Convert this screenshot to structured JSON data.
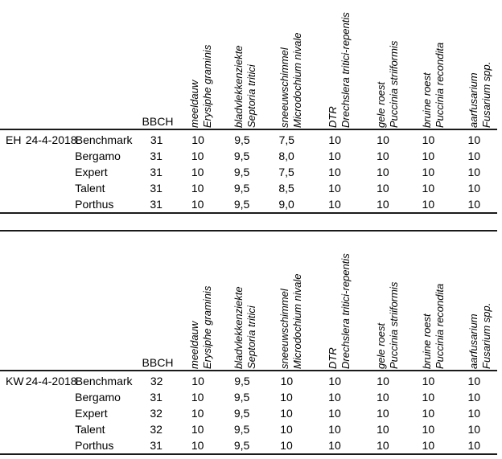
{
  "page": {
    "background": "#ffffff",
    "text_color": "#000000",
    "line_color": "#1a1a1a"
  },
  "columns": {
    "bbch_label": "BBCH",
    "diseases": [
      {
        "id": "meeldauw",
        "common": "meeldauw",
        "latin": "Erysiphe graminis"
      },
      {
        "id": "bladvlekkenziekte",
        "common": "bladvlekkenziekte",
        "latin": "Septoria tritici"
      },
      {
        "id": "sneeuwschimmel",
        "common": "sneeuwschimmel",
        "latin": "Microdochium nivale"
      },
      {
        "id": "dtr",
        "common": "DTR",
        "latin": "Drechslera tritici-repentis"
      },
      {
        "id": "gele-roest",
        "common": "gele roest",
        "latin": "Puccinia striiformis"
      },
      {
        "id": "bruine-roest",
        "common": "bruine roest",
        "latin": "Puccinia recondita"
      },
      {
        "id": "aarfusarium",
        "common": "aarfusarium",
        "latin": "Fusarium spp."
      }
    ]
  },
  "tables": [
    {
      "id": "eh",
      "location_code": "EH",
      "date": "24-4-2018",
      "rows": [
        {
          "variety": "Benchmark",
          "bbch": "31",
          "scores": [
            "10",
            "9,5",
            "7,5",
            "10",
            "10",
            "10",
            "10"
          ]
        },
        {
          "variety": "Bergamo",
          "bbch": "31",
          "scores": [
            "10",
            "9,5",
            "8,0",
            "10",
            "10",
            "10",
            "10"
          ]
        },
        {
          "variety": "Expert",
          "bbch": "31",
          "scores": [
            "10",
            "9,5",
            "7,5",
            "10",
            "10",
            "10",
            "10"
          ]
        },
        {
          "variety": "Talent",
          "bbch": "31",
          "scores": [
            "10",
            "9,5",
            "8,5",
            "10",
            "10",
            "10",
            "10"
          ]
        },
        {
          "variety": "Porthus",
          "bbch": "31",
          "scores": [
            "10",
            "9,5",
            "9,0",
            "10",
            "10",
            "10",
            "10"
          ]
        }
      ]
    },
    {
      "id": "kw",
      "location_code": "KW",
      "date": "24-4-2018",
      "rows": [
        {
          "variety": "Benchmark",
          "bbch": "32",
          "scores": [
            "10",
            "9,5",
            "10",
            "10",
            "10",
            "10",
            "10"
          ]
        },
        {
          "variety": "Bergamo",
          "bbch": "31",
          "scores": [
            "10",
            "9,5",
            "10",
            "10",
            "10",
            "10",
            "10"
          ]
        },
        {
          "variety": "Expert",
          "bbch": "32",
          "scores": [
            "10",
            "9,5",
            "10",
            "10",
            "10",
            "10",
            "10"
          ]
        },
        {
          "variety": "Talent",
          "bbch": "32",
          "scores": [
            "10",
            "9,5",
            "10",
            "10",
            "10",
            "10",
            "10"
          ]
        },
        {
          "variety": "Porthus",
          "bbch": "31",
          "scores": [
            "10",
            "9,5",
            "10",
            "10",
            "10",
            "10",
            "10"
          ]
        }
      ]
    }
  ]
}
